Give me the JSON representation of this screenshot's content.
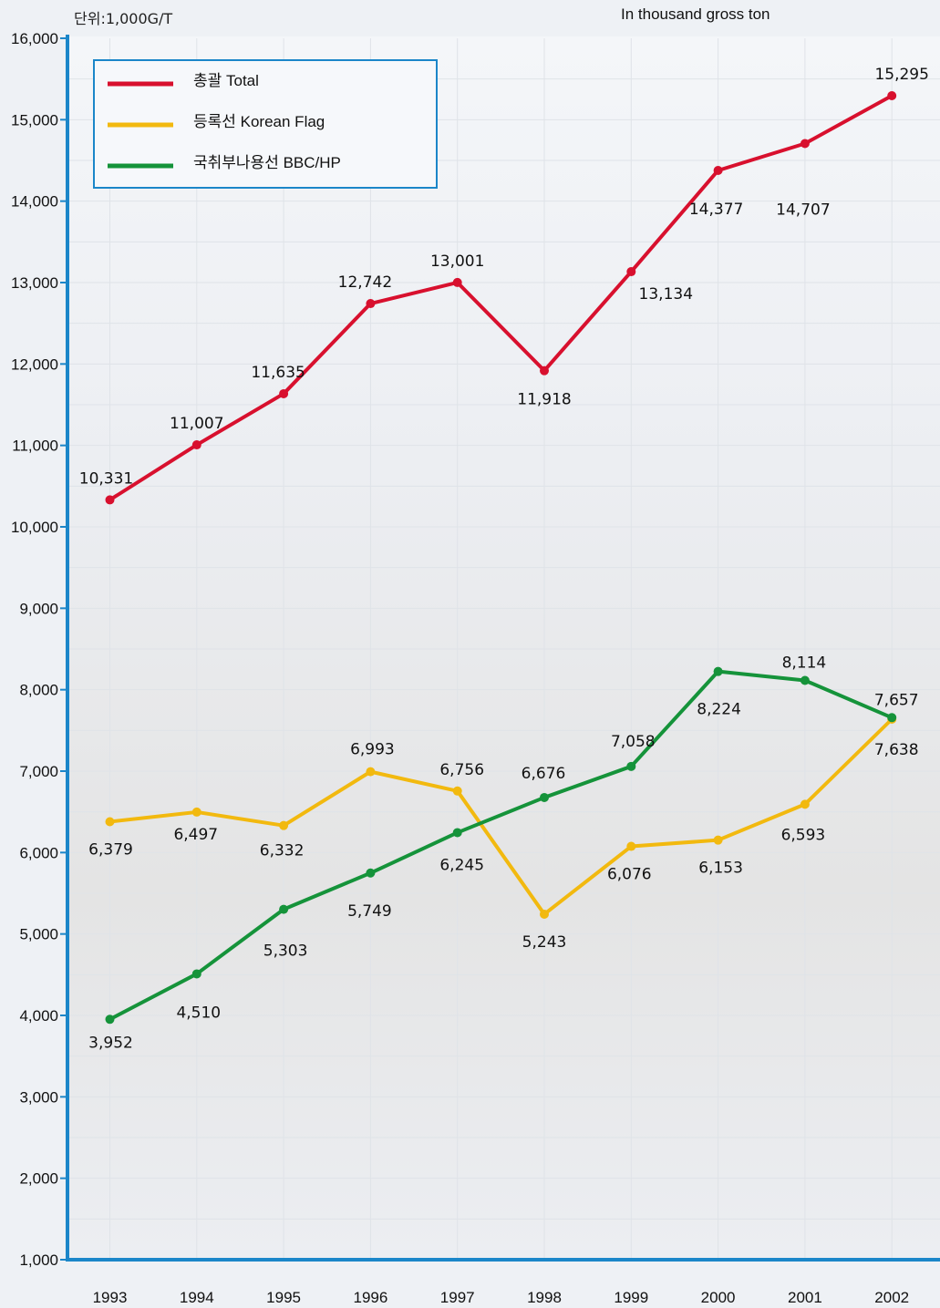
{
  "header": {
    "unit_korean": "단위:1,000G/T",
    "unit_english": "In thousand gross ton"
  },
  "chart_data": {
    "type": "line",
    "x": [
      "1993",
      "1994",
      "1995",
      "1996",
      "1997",
      "1998",
      "1999",
      "2000",
      "2001",
      "2002"
    ],
    "ylim": [
      1000,
      16000
    ],
    "yticks": [
      "1,000",
      "2,000",
      "3,000",
      "4,000",
      "5,000",
      "6,000",
      "7,000",
      "8,000",
      "9,000",
      "10,000",
      "11,000",
      "12,000",
      "13,000",
      "14,000",
      "15,000",
      "16,000"
    ],
    "grid": true,
    "legend_position": "top-left",
    "series": [
      {
        "name": "총괄 Total",
        "color": "#d8102e",
        "values": [
          10331,
          11007,
          11635,
          12742,
          13001,
          11918,
          13134,
          14377,
          14707,
          15295
        ],
        "labels": [
          "10,331",
          "11,007",
          "11,635",
          "12,742",
          "13,001",
          "11,918",
          "13,134",
          "14,377",
          "14,707",
          "15,295"
        ]
      },
      {
        "name": "등록선 Korean Flag",
        "color": "#f2b90f",
        "values": [
          6379,
          6497,
          6332,
          6993,
          6756,
          5243,
          6076,
          6153,
          6593,
          7638
        ],
        "labels": [
          "6,379",
          "6,497",
          "6,332",
          "6,993",
          "6,756",
          "5,243",
          "6,076",
          "6,153",
          "6,593",
          "7,638"
        ]
      },
      {
        "name": "국취부나용선 BBC/HP",
        "color": "#15933a",
        "values": [
          3952,
          4510,
          5303,
          5749,
          6245,
          6676,
          7058,
          8224,
          8114,
          7657
        ],
        "labels": [
          "3,952",
          "4,510",
          "5,303",
          "5,749",
          "6,245",
          "6,676",
          "7,058",
          "8,224",
          "8,114",
          "7,657"
        ]
      }
    ]
  }
}
